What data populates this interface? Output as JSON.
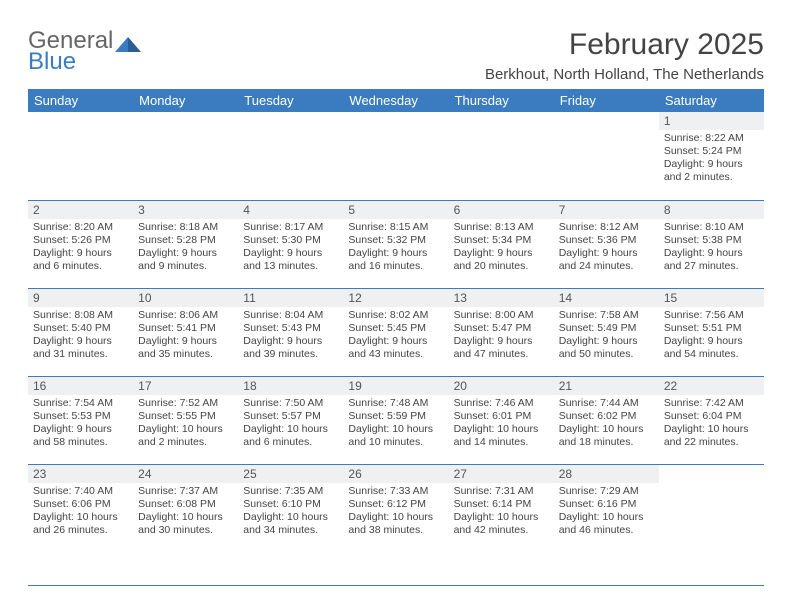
{
  "brand": {
    "line1": "General",
    "line2": "Blue"
  },
  "title": "February 2025",
  "location": "Berkhout, North Holland, The Netherlands",
  "colors": {
    "accent": "#3a7cbf",
    "daynum_bg": "#eef0f2",
    "text": "#444444",
    "bg": "#ffffff",
    "header_text": "#ffffff"
  },
  "typography": {
    "title_fontsize": 30,
    "location_fontsize": 15,
    "header_fontsize": 13,
    "body_fontsize": 10.5
  },
  "calendar": {
    "type": "table",
    "columns": [
      "Sunday",
      "Monday",
      "Tuesday",
      "Wednesday",
      "Thursday",
      "Friday",
      "Saturday"
    ],
    "weeks": [
      [
        {
          "day": "",
          "lines": [
            "",
            "",
            "",
            ""
          ]
        },
        {
          "day": "",
          "lines": [
            "",
            "",
            "",
            ""
          ]
        },
        {
          "day": "",
          "lines": [
            "",
            "",
            "",
            ""
          ]
        },
        {
          "day": "",
          "lines": [
            "",
            "",
            "",
            ""
          ]
        },
        {
          "day": "",
          "lines": [
            "",
            "",
            "",
            ""
          ]
        },
        {
          "day": "",
          "lines": [
            "",
            "",
            "",
            ""
          ]
        },
        {
          "day": "1",
          "lines": [
            "Sunrise: 8:22 AM",
            "Sunset: 5:24 PM",
            "Daylight: 9 hours",
            "and 2 minutes."
          ]
        }
      ],
      [
        {
          "day": "2",
          "lines": [
            "Sunrise: 8:20 AM",
            "Sunset: 5:26 PM",
            "Daylight: 9 hours",
            "and 6 minutes."
          ]
        },
        {
          "day": "3",
          "lines": [
            "Sunrise: 8:18 AM",
            "Sunset: 5:28 PM",
            "Daylight: 9 hours",
            "and 9 minutes."
          ]
        },
        {
          "day": "4",
          "lines": [
            "Sunrise: 8:17 AM",
            "Sunset: 5:30 PM",
            "Daylight: 9 hours",
            "and 13 minutes."
          ]
        },
        {
          "day": "5",
          "lines": [
            "Sunrise: 8:15 AM",
            "Sunset: 5:32 PM",
            "Daylight: 9 hours",
            "and 16 minutes."
          ]
        },
        {
          "day": "6",
          "lines": [
            "Sunrise: 8:13 AM",
            "Sunset: 5:34 PM",
            "Daylight: 9 hours",
            "and 20 minutes."
          ]
        },
        {
          "day": "7",
          "lines": [
            "Sunrise: 8:12 AM",
            "Sunset: 5:36 PM",
            "Daylight: 9 hours",
            "and 24 minutes."
          ]
        },
        {
          "day": "8",
          "lines": [
            "Sunrise: 8:10 AM",
            "Sunset: 5:38 PM",
            "Daylight: 9 hours",
            "and 27 minutes."
          ]
        }
      ],
      [
        {
          "day": "9",
          "lines": [
            "Sunrise: 8:08 AM",
            "Sunset: 5:40 PM",
            "Daylight: 9 hours",
            "and 31 minutes."
          ]
        },
        {
          "day": "10",
          "lines": [
            "Sunrise: 8:06 AM",
            "Sunset: 5:41 PM",
            "Daylight: 9 hours",
            "and 35 minutes."
          ]
        },
        {
          "day": "11",
          "lines": [
            "Sunrise: 8:04 AM",
            "Sunset: 5:43 PM",
            "Daylight: 9 hours",
            "and 39 minutes."
          ]
        },
        {
          "day": "12",
          "lines": [
            "Sunrise: 8:02 AM",
            "Sunset: 5:45 PM",
            "Daylight: 9 hours",
            "and 43 minutes."
          ]
        },
        {
          "day": "13",
          "lines": [
            "Sunrise: 8:00 AM",
            "Sunset: 5:47 PM",
            "Daylight: 9 hours",
            "and 47 minutes."
          ]
        },
        {
          "day": "14",
          "lines": [
            "Sunrise: 7:58 AM",
            "Sunset: 5:49 PM",
            "Daylight: 9 hours",
            "and 50 minutes."
          ]
        },
        {
          "day": "15",
          "lines": [
            "Sunrise: 7:56 AM",
            "Sunset: 5:51 PM",
            "Daylight: 9 hours",
            "and 54 minutes."
          ]
        }
      ],
      [
        {
          "day": "16",
          "lines": [
            "Sunrise: 7:54 AM",
            "Sunset: 5:53 PM",
            "Daylight: 9 hours",
            "and 58 minutes."
          ]
        },
        {
          "day": "17",
          "lines": [
            "Sunrise: 7:52 AM",
            "Sunset: 5:55 PM",
            "Daylight: 10 hours",
            "and 2 minutes."
          ]
        },
        {
          "day": "18",
          "lines": [
            "Sunrise: 7:50 AM",
            "Sunset: 5:57 PM",
            "Daylight: 10 hours",
            "and 6 minutes."
          ]
        },
        {
          "day": "19",
          "lines": [
            "Sunrise: 7:48 AM",
            "Sunset: 5:59 PM",
            "Daylight: 10 hours",
            "and 10 minutes."
          ]
        },
        {
          "day": "20",
          "lines": [
            "Sunrise: 7:46 AM",
            "Sunset: 6:01 PM",
            "Daylight: 10 hours",
            "and 14 minutes."
          ]
        },
        {
          "day": "21",
          "lines": [
            "Sunrise: 7:44 AM",
            "Sunset: 6:02 PM",
            "Daylight: 10 hours",
            "and 18 minutes."
          ]
        },
        {
          "day": "22",
          "lines": [
            "Sunrise: 7:42 AM",
            "Sunset: 6:04 PM",
            "Daylight: 10 hours",
            "and 22 minutes."
          ]
        }
      ],
      [
        {
          "day": "23",
          "lines": [
            "Sunrise: 7:40 AM",
            "Sunset: 6:06 PM",
            "Daylight: 10 hours",
            "and 26 minutes."
          ]
        },
        {
          "day": "24",
          "lines": [
            "Sunrise: 7:37 AM",
            "Sunset: 6:08 PM",
            "Daylight: 10 hours",
            "and 30 minutes."
          ]
        },
        {
          "day": "25",
          "lines": [
            "Sunrise: 7:35 AM",
            "Sunset: 6:10 PM",
            "Daylight: 10 hours",
            "and 34 minutes."
          ]
        },
        {
          "day": "26",
          "lines": [
            "Sunrise: 7:33 AM",
            "Sunset: 6:12 PM",
            "Daylight: 10 hours",
            "and 38 minutes."
          ]
        },
        {
          "day": "27",
          "lines": [
            "Sunrise: 7:31 AM",
            "Sunset: 6:14 PM",
            "Daylight: 10 hours",
            "and 42 minutes."
          ]
        },
        {
          "day": "28",
          "lines": [
            "Sunrise: 7:29 AM",
            "Sunset: 6:16 PM",
            "Daylight: 10 hours",
            "and 46 minutes."
          ]
        },
        {
          "day": "",
          "lines": [
            "",
            "",
            "",
            ""
          ]
        }
      ]
    ]
  }
}
